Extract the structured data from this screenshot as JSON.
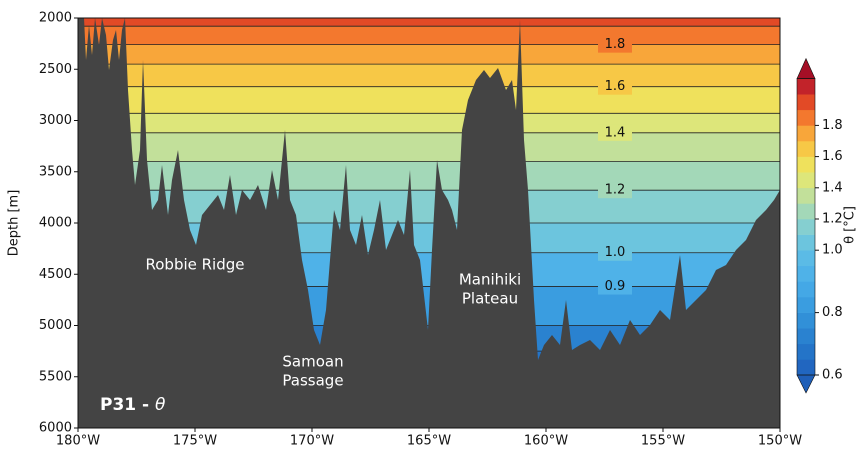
{
  "chart_data": {
    "type": "contour",
    "title": "P31 -",
    "title_symbol": "θ",
    "y_label": "Depth [m]",
    "colorbar_label": "θ [°C]",
    "xlim": [
      -180,
      -150
    ],
    "xticks": [
      {
        "value": -180,
        "label": "180°W"
      },
      {
        "value": -175,
        "label": "175°W"
      },
      {
        "value": -170,
        "label": "170°W"
      },
      {
        "value": -165,
        "label": "165°W"
      },
      {
        "value": -160,
        "label": "160°W"
      },
      {
        "value": -155,
        "label": "155°W"
      },
      {
        "value": -150,
        "label": "150°W"
      }
    ],
    "ylim": [
      6000,
      2000
    ],
    "yticks": [
      2000,
      2500,
      3000,
      3500,
      4000,
      4500,
      5000,
      5500,
      6000
    ],
    "isotherms": [
      {
        "level": 0.7,
        "depth": 5250
      },
      {
        "level": 0.8,
        "depth": 5000
      },
      {
        "level": 0.9,
        "depth": 4620
      },
      {
        "level": 1.0,
        "depth": 4290
      },
      {
        "level": 1.1,
        "depth": 4000
      },
      {
        "level": 1.2,
        "depth": 3680
      },
      {
        "level": 1.3,
        "depth": 3400
      },
      {
        "level": 1.4,
        "depth": 3120
      },
      {
        "level": 1.5,
        "depth": 2930
      },
      {
        "level": 1.6,
        "depth": 2670
      },
      {
        "level": 1.7,
        "depth": 2450
      },
      {
        "level": 1.8,
        "depth": 2260
      },
      {
        "level": 1.9,
        "depth": 2080
      }
    ],
    "isotherm_labels": [
      1.8,
      1.6,
      1.4,
      1.2,
      {
        "value": 1.0,
        "label": "1.0"
      },
      0.9
    ],
    "colorbar_levels": [
      0.6,
      0.65,
      0.7,
      0.75,
      0.8,
      0.85,
      0.9,
      0.95,
      1.0,
      1.1,
      1.2,
      1.3,
      1.4,
      1.5,
      1.6,
      1.7,
      1.8,
      1.9,
      2.0,
      2.1
    ],
    "colorbar_colors": [
      "#2166c0",
      "#2474c8",
      "#2a82d0",
      "#3190d8",
      "#3a9de0",
      "#44a8e6",
      "#4fb2e8",
      "#5bbbe6",
      "#6cc5de",
      "#85cfd0",
      "#a3d8b8",
      "#c2e09a",
      "#dde67a",
      "#efe15c",
      "#f7c846",
      "#f8a63a",
      "#f3782e",
      "#e24a26",
      "#c2232a"
    ],
    "colorbar_ticks": [
      0.6,
      0.8,
      {
        "value": 1.0,
        "label": "1.0"
      },
      1.2,
      1.4,
      1.6,
      1.8
    ],
    "annotations": [
      "Robbie Ridge",
      "Samoan",
      "Passage",
      "Manihiki",
      "Plateau"
    ]
  }
}
